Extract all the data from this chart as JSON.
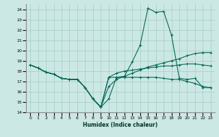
{
  "bg_color": "#cce8e4",
  "grid_color": "#aacfc8",
  "line_color": "#006655",
  "xlabel": "Humidex (Indice chaleur)",
  "xlim": [
    -0.5,
    23.5
  ],
  "ylim": [
    14,
    24.5
  ],
  "yticks": [
    14,
    15,
    16,
    17,
    18,
    19,
    20,
    21,
    22,
    23,
    24
  ],
  "xticks": [
    0,
    1,
    2,
    3,
    4,
    5,
    6,
    7,
    8,
    9,
    10,
    11,
    12,
    13,
    14,
    15,
    16,
    17,
    18,
    19,
    20,
    21,
    22,
    23
  ],
  "series": [
    {
      "x": [
        0,
        1,
        2,
        3,
        4,
        5,
        6,
        7,
        8,
        9,
        10,
        11,
        12,
        13,
        14,
        15,
        16,
        17,
        18,
        19,
        20,
        21,
        22,
        23
      ],
      "y": [
        18.6,
        18.3,
        17.9,
        17.7,
        17.3,
        17.2,
        17.2,
        16.4,
        15.3,
        14.5,
        15.3,
        17.4,
        17.5,
        18.9,
        20.5,
        24.1,
        23.7,
        23.8,
        21.5,
        17.3,
        17.2,
        17.3,
        16.4,
        16.4
      ]
    },
    {
      "x": [
        0,
        1,
        2,
        3,
        4,
        5,
        6,
        7,
        8,
        9,
        10,
        11,
        12,
        13,
        14,
        15,
        16,
        17,
        18,
        19,
        20,
        21,
        22,
        23
      ],
      "y": [
        18.6,
        18.3,
        17.9,
        17.7,
        17.3,
        17.2,
        17.2,
        16.4,
        15.3,
        14.5,
        16.5,
        17.2,
        17.5,
        17.8,
        18.1,
        18.4,
        18.6,
        18.8,
        19.0,
        19.2,
        19.5,
        19.7,
        19.8,
        19.8
      ]
    },
    {
      "x": [
        0,
        1,
        2,
        3,
        4,
        5,
        6,
        7,
        8,
        9,
        10,
        11,
        12,
        13,
        14,
        15,
        16,
        17,
        18,
        19,
        20,
        21,
        22,
        23
      ],
      "y": [
        18.6,
        18.3,
        17.9,
        17.7,
        17.3,
        17.2,
        17.2,
        16.4,
        15.3,
        14.5,
        17.4,
        17.8,
        18.0,
        18.1,
        18.2,
        18.3,
        18.4,
        18.5,
        18.5,
        18.6,
        18.7,
        18.7,
        18.6,
        18.5
      ]
    },
    {
      "x": [
        0,
        1,
        2,
        3,
        4,
        5,
        6,
        7,
        8,
        9,
        10,
        11,
        12,
        13,
        14,
        15,
        16,
        17,
        18,
        19,
        20,
        21,
        22,
        23
      ],
      "y": [
        18.6,
        18.3,
        17.9,
        17.7,
        17.3,
        17.2,
        17.2,
        16.4,
        15.3,
        14.5,
        17.4,
        17.4,
        17.4,
        17.4,
        17.4,
        17.4,
        17.4,
        17.3,
        17.2,
        17.2,
        17.0,
        16.8,
        16.5,
        16.4
      ]
    }
  ]
}
